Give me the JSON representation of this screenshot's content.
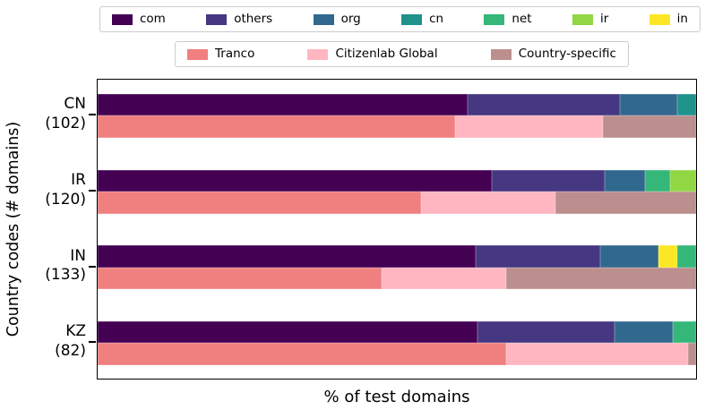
{
  "colors": {
    "com": "#440154",
    "others": "#453781",
    "org": "#31688e",
    "cn": "#21918c",
    "net": "#35b779",
    "ir": "#90d743",
    "in": "#fde725",
    "Tranco": "#f08080",
    "Citizenlab Global": "#ffb6c1",
    "Country-specific": "#bc8f8f"
  },
  "legends": {
    "tld": {
      "items": [
        "com",
        "others",
        "org",
        "cn",
        "net",
        "ir",
        "in"
      ]
    },
    "source": {
      "items": [
        "Tranco",
        "Citizenlab Global",
        "Country-specific"
      ]
    }
  },
  "chart_data": {
    "type": "bar",
    "orientation": "horizontal",
    "stacked": true,
    "xlabel": "% of test domains",
    "ylabel": "Country codes (# domains)",
    "xlim": [
      0,
      100
    ],
    "x_tick_labels_shown": false,
    "legend_position": "top-outside",
    "grid": false,
    "categories": [
      "CN (102)",
      "IR (120)",
      "IN (133)",
      "KZ (82)"
    ],
    "groups": [
      {
        "code": "CN",
        "domain_count": 102,
        "tick_lines": [
          "CN",
          "(102)"
        ],
        "tld_segments": [
          {
            "label": "com",
            "pct": 61.8
          },
          {
            "label": "others",
            "pct": 25.4
          },
          {
            "label": "org",
            "pct": 9.7
          },
          {
            "label": "cn",
            "pct": 3.1
          }
        ],
        "source_segments": [
          {
            "label": "Tranco",
            "pct": 59.8
          },
          {
            "label": "Citizenlab Global",
            "pct": 24.7
          },
          {
            "label": "Country-specific",
            "pct": 15.5
          }
        ]
      },
      {
        "code": "IR",
        "domain_count": 120,
        "tick_lines": [
          "IR",
          "(120)"
        ],
        "tld_segments": [
          {
            "label": "com",
            "pct": 65.8
          },
          {
            "label": "others",
            "pct": 19.0
          },
          {
            "label": "org",
            "pct": 6.7
          },
          {
            "label": "net",
            "pct": 4.2
          },
          {
            "label": "ir",
            "pct": 4.3
          }
        ],
        "source_segments": [
          {
            "label": "Tranco",
            "pct": 54.1
          },
          {
            "label": "Citizenlab Global",
            "pct": 22.4
          },
          {
            "label": "Country-specific",
            "pct": 23.5
          }
        ]
      },
      {
        "code": "IN",
        "domain_count": 133,
        "tick_lines": [
          "IN",
          "(133)"
        ],
        "tld_segments": [
          {
            "label": "com",
            "pct": 63.1
          },
          {
            "label": "others",
            "pct": 20.9
          },
          {
            "label": "org",
            "pct": 9.7
          },
          {
            "label": "in",
            "pct": 3.1
          },
          {
            "label": "net",
            "pct": 3.2
          }
        ],
        "source_segments": [
          {
            "label": "Tranco",
            "pct": 47.4
          },
          {
            "label": "Citizenlab Global",
            "pct": 20.9
          },
          {
            "label": "Country-specific",
            "pct": 31.7
          }
        ]
      },
      {
        "code": "KZ",
        "domain_count": 82,
        "tick_lines": [
          "KZ",
          "(82)"
        ],
        "tld_segments": [
          {
            "label": "com",
            "pct": 63.4
          },
          {
            "label": "others",
            "pct": 23.0
          },
          {
            "label": "org",
            "pct": 9.7
          },
          {
            "label": "net",
            "pct": 3.9
          }
        ],
        "source_segments": [
          {
            "label": "Tranco",
            "pct": 68.2
          },
          {
            "label": "Citizenlab Global",
            "pct": 30.5
          },
          {
            "label": "Country-specific",
            "pct": 1.3
          }
        ]
      }
    ]
  }
}
